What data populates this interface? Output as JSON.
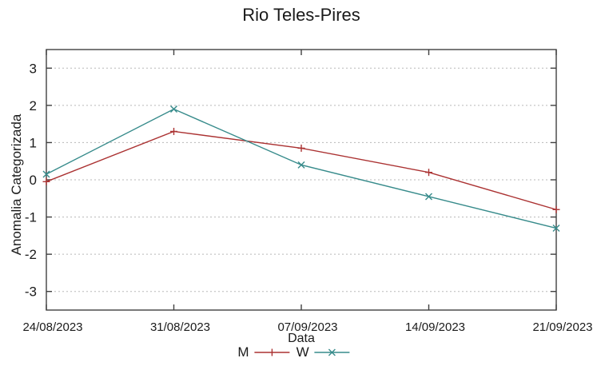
{
  "chart_data": {
    "type": "line",
    "title": "Rio Teles-Pires",
    "xlabel": "Data",
    "ylabel": "Anomalia Categorizada",
    "categories": [
      "24/08/2023",
      "31/08/2023",
      "07/09/2023",
      "14/09/2023",
      "21/09/2023"
    ],
    "yticks": [
      -3,
      -2,
      -1,
      0,
      1,
      2,
      3
    ],
    "ylim": [
      -3.5,
      3.5
    ],
    "grid": "horizontal-dotted",
    "legend_position": "below",
    "series": [
      {
        "name": "M",
        "color": "#ab3232",
        "marker": "plus",
        "values": [
          -0.05,
          1.3,
          0.85,
          0.2,
          -0.8
        ]
      },
      {
        "name": "W",
        "color": "#378b8b",
        "marker": "cross",
        "values": [
          0.15,
          1.9,
          0.4,
          -0.45,
          -1.3
        ]
      }
    ]
  }
}
